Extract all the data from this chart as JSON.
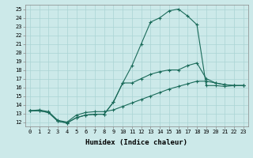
{
  "xlabel": "Humidex (Indice chaleur)",
  "bg_color": "#cce9e9",
  "grid_color": "#aad4d4",
  "line_color": "#1a6b5a",
  "xlim": [
    -0.5,
    23.5
  ],
  "ylim": [
    11.5,
    25.5
  ],
  "xticks": [
    0,
    1,
    2,
    3,
    4,
    5,
    6,
    7,
    8,
    9,
    10,
    11,
    12,
    13,
    14,
    15,
    16,
    17,
    18,
    19,
    20,
    21,
    22,
    23
  ],
  "yticks": [
    12,
    13,
    14,
    15,
    16,
    17,
    18,
    19,
    20,
    21,
    22,
    23,
    24,
    25
  ],
  "line1_x": [
    0,
    1,
    2,
    3,
    4,
    5,
    6,
    7,
    8,
    9,
    10,
    11,
    12,
    13,
    14,
    15,
    16,
    17,
    18,
    19,
    20,
    21,
    22,
    23
  ],
  "line1_y": [
    13.3,
    13.3,
    13.1,
    12.1,
    11.9,
    12.5,
    12.8,
    12.9,
    12.9,
    14.3,
    16.5,
    18.5,
    21.0,
    23.5,
    24.0,
    24.8,
    25.0,
    24.2,
    23.2,
    16.2,
    16.2,
    16.1,
    16.2,
    16.2
  ],
  "line2_x": [
    0,
    1,
    2,
    3,
    4,
    5,
    6,
    7,
    8,
    9,
    10,
    11,
    12,
    13,
    14,
    15,
    16,
    17,
    18,
    19,
    20,
    21,
    22,
    23
  ],
  "line2_y": [
    13.3,
    13.3,
    13.1,
    12.1,
    11.9,
    12.5,
    12.8,
    12.9,
    12.9,
    14.3,
    16.5,
    16.5,
    17.0,
    17.5,
    17.8,
    18.0,
    18.0,
    18.5,
    18.8,
    17.0,
    16.5,
    16.3,
    16.2,
    16.2
  ],
  "line3_x": [
    0,
    1,
    2,
    3,
    4,
    5,
    6,
    7,
    8,
    9,
    10,
    11,
    12,
    13,
    14,
    15,
    16,
    17,
    18,
    19,
    20,
    21,
    22,
    23
  ],
  "line3_y": [
    13.3,
    13.4,
    13.2,
    12.2,
    12.0,
    12.8,
    13.1,
    13.2,
    13.2,
    13.4,
    13.8,
    14.2,
    14.6,
    15.0,
    15.4,
    15.8,
    16.1,
    16.4,
    16.7,
    16.7,
    16.5,
    16.3,
    16.2,
    16.2
  ],
  "tick_fontsize": 5.0,
  "xlabel_fontsize": 6.5
}
